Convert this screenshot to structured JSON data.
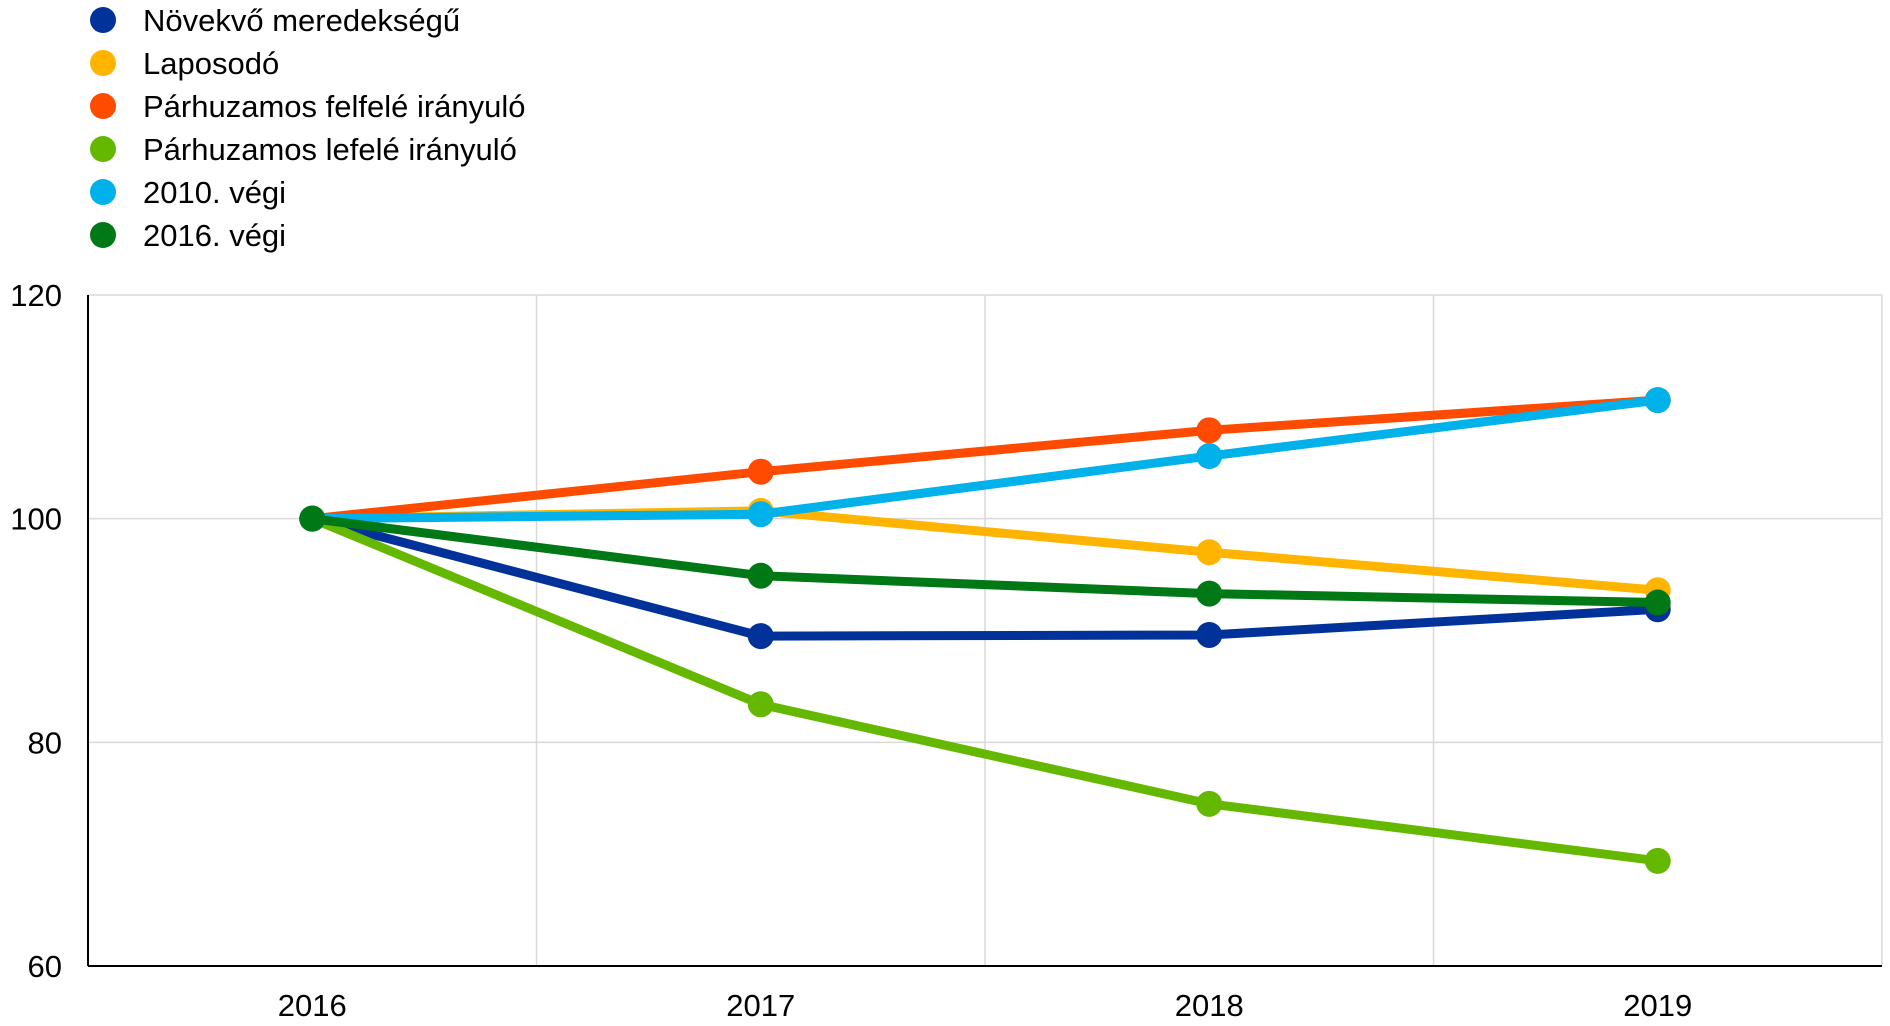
{
  "chart_data": {
    "type": "line",
    "title": "",
    "xlabel": "",
    "ylabel": "",
    "categories": [
      "2016",
      "2017",
      "2018",
      "2019"
    ],
    "ylim": [
      60,
      120
    ],
    "yticks": [
      60,
      80,
      100,
      120
    ],
    "grid": true,
    "legend_position": "top-left",
    "series": [
      {
        "name": "Növekvő meredekségű",
        "color": "#003299",
        "values": [
          100,
          89.5,
          89.6,
          91.9
        ]
      },
      {
        "name": "Laposodó",
        "color": "#FFB400",
        "values": [
          100,
          100.7,
          97.0,
          93.6
        ]
      },
      {
        "name": "Párhuzamos felfelé irányuló",
        "color": "#FF4B00",
        "values": [
          100,
          104.2,
          107.9,
          110.6
        ]
      },
      {
        "name": "Párhuzamos lefelé irányuló",
        "color": "#65B800",
        "values": [
          100,
          83.4,
          74.5,
          69.4
        ]
      },
      {
        "name": "2010. végi",
        "color": "#00B1EA",
        "values": [
          100,
          100.4,
          105.6,
          110.6
        ]
      },
      {
        "name": "2016. végi",
        "color": "#007816",
        "values": [
          100,
          94.9,
          93.3,
          92.5
        ]
      }
    ]
  }
}
